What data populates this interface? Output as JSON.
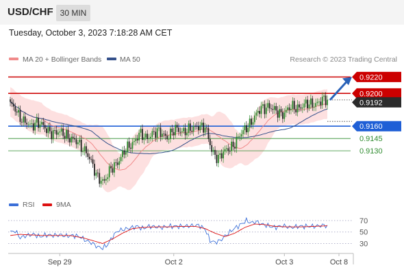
{
  "header": {
    "symbol": "USD/CHF",
    "timeframe": "30 MIN",
    "datetime": "Tuesday, October 3, 2023 7:18:28 AM CET"
  },
  "colors": {
    "resistance": "#cc0000",
    "support": "#1f5fd6",
    "target_line": "#2e8b2e",
    "bollinger_fill": "#fde0e0",
    "ma20": "#f08a8a",
    "ma50": "#34508a",
    "rsi": "#3b6fd8",
    "rsi_ma": "#dd1111",
    "candle_up": "#2b8a2b",
    "candle_down": "#222222",
    "arrow": "#2a62b8"
  },
  "chart_data": [
    {
      "type": "candlestick",
      "legend": [
        {
          "name": "MA 20 + Bollinger Bands",
          "color": "#f08a8a"
        },
        {
          "name": "MA 50",
          "color": "#34508a"
        }
      ],
      "credit": "Research © 2023 Trading Central",
      "ylim": [
        0.908,
        0.9232
      ],
      "x_ticks": [
        "Sep 29",
        "Oct 2",
        "Oct 3",
        "Oct 8"
      ],
      "last_price": 0.9192,
      "levels": [
        {
          "value": 0.922,
          "label": "0.9220",
          "kind": "resistance"
        },
        {
          "value": 0.92,
          "label": "0.9200",
          "kind": "resistance"
        },
        {
          "value": 0.9192,
          "label": "0.9192",
          "kind": "last"
        },
        {
          "value": 0.916,
          "label": "0.9160",
          "kind": "support"
        },
        {
          "value": 0.9145,
          "label": "0.9145",
          "kind": "target"
        },
        {
          "value": 0.913,
          "label": "0.9130",
          "kind": "target"
        }
      ],
      "close_anchors": [
        [
          0,
          0.9185
        ],
        [
          3,
          0.9182
        ],
        [
          8,
          0.9165
        ],
        [
          12,
          0.916
        ],
        [
          16,
          0.9166
        ],
        [
          22,
          0.9155
        ],
        [
          28,
          0.9152
        ],
        [
          34,
          0.915
        ],
        [
          40,
          0.914
        ],
        [
          46,
          0.913
        ],
        [
          52,
          0.91
        ],
        [
          57,
          0.9093
        ],
        [
          62,
          0.911
        ],
        [
          66,
          0.912
        ],
        [
          70,
          0.913
        ],
        [
          74,
          0.914
        ],
        [
          78,
          0.915
        ],
        [
          82,
          0.9145
        ],
        [
          86,
          0.9152
        ],
        [
          90,
          0.9152
        ],
        [
          95,
          0.9148
        ],
        [
          100,
          0.9155
        ],
        [
          105,
          0.9155
        ],
        [
          110,
          0.9155
        ],
        [
          114,
          0.9162
        ],
        [
          118,
          0.9158
        ],
        [
          122,
          0.913
        ],
        [
          126,
          0.9122
        ],
        [
          131,
          0.913
        ],
        [
          136,
          0.914
        ],
        [
          140,
          0.915
        ],
        [
          144,
          0.9162
        ],
        [
          148,
          0.917
        ],
        [
          152,
          0.9182
        ],
        [
          156,
          0.9185
        ],
        [
          160,
          0.9178
        ],
        [
          165,
          0.9176
        ],
        [
          170,
          0.9182
        ],
        [
          175,
          0.9184
        ],
        [
          180,
          0.9186
        ],
        [
          184,
          0.9188
        ],
        [
          188,
          0.919
        ],
        [
          192,
          0.9192
        ]
      ]
    },
    {
      "type": "line",
      "legend": [
        {
          "name": "RSI",
          "color": "#3b6fd8"
        },
        {
          "name": "9MA",
          "color": "#dd1111"
        }
      ],
      "ylim": [
        15,
        82
      ],
      "y_ticks": [
        70,
        50,
        30
      ],
      "rsi_anchors": [
        [
          0,
          50
        ],
        [
          3,
          52
        ],
        [
          6,
          40
        ],
        [
          10,
          44
        ],
        [
          14,
          46
        ],
        [
          18,
          42
        ],
        [
          22,
          45
        ],
        [
          26,
          44
        ],
        [
          30,
          45
        ],
        [
          34,
          43
        ],
        [
          38,
          44
        ],
        [
          42,
          42
        ],
        [
          46,
          35
        ],
        [
          50,
          30
        ],
        [
          53,
          24
        ],
        [
          56,
          22
        ],
        [
          59,
          28
        ],
        [
          62,
          42
        ],
        [
          65,
          52
        ],
        [
          68,
          54
        ],
        [
          71,
          56
        ],
        [
          74,
          58
        ],
        [
          77,
          60
        ],
        [
          80,
          56
        ],
        [
          84,
          60
        ],
        [
          88,
          59
        ],
        [
          92,
          58
        ],
        [
          96,
          60
        ],
        [
          100,
          60
        ],
        [
          105,
          60
        ],
        [
          110,
          61
        ],
        [
          114,
          62
        ],
        [
          118,
          55
        ],
        [
          121,
          35
        ],
        [
          124,
          32
        ],
        [
          127,
          35
        ],
        [
          131,
          45
        ],
        [
          135,
          55
        ],
        [
          139,
          62
        ],
        [
          143,
          70
        ],
        [
          146,
          66
        ],
        [
          149,
          68
        ],
        [
          152,
          64
        ],
        [
          156,
          61
        ],
        [
          160,
          58
        ],
        [
          165,
          61
        ],
        [
          170,
          58
        ],
        [
          175,
          60
        ],
        [
          180,
          60
        ],
        [
          185,
          60
        ],
        [
          190,
          62
        ],
        [
          192,
          60
        ]
      ],
      "ma_anchors": [
        [
          0,
          44
        ],
        [
          6,
          46
        ],
        [
          12,
          45
        ],
        [
          20,
          44
        ],
        [
          28,
          44
        ],
        [
          36,
          44
        ],
        [
          44,
          40
        ],
        [
          50,
          35
        ],
        [
          56,
          30
        ],
        [
          62,
          38
        ],
        [
          68,
          48
        ],
        [
          74,
          56
        ],
        [
          80,
          58
        ],
        [
          88,
          59
        ],
        [
          96,
          59
        ],
        [
          104,
          60
        ],
        [
          112,
          60
        ],
        [
          118,
          56
        ],
        [
          124,
          48
        ],
        [
          130,
          42
        ],
        [
          136,
          48
        ],
        [
          142,
          58
        ],
        [
          148,
          64
        ],
        [
          154,
          63
        ],
        [
          160,
          60
        ],
        [
          168,
          59
        ],
        [
          176,
          59
        ],
        [
          184,
          60
        ],
        [
          192,
          61
        ]
      ]
    }
  ]
}
